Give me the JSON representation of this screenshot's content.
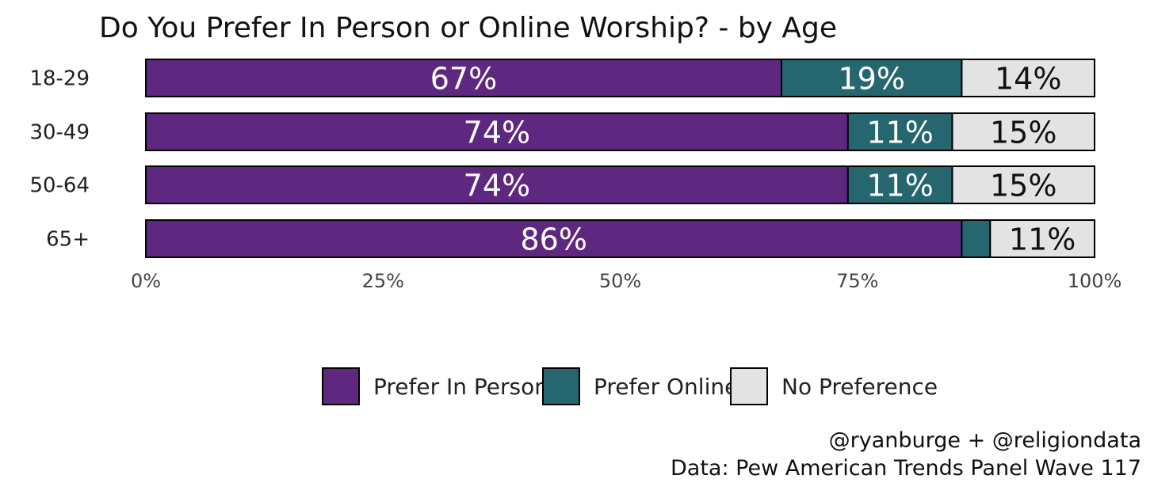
{
  "colors": {
    "in_person": "#5e2780",
    "online": "#26666e",
    "no_preference": "#e3e3e3",
    "outline": "#000000"
  },
  "chart_data": {
    "type": "bar",
    "orientation": "horizontal",
    "stacked": true,
    "title": "Do You Prefer In Person or Online Worship? - by Age",
    "categories": [
      "18-29",
      "30-49",
      "50-64",
      "65+"
    ],
    "series": [
      {
        "name": "Prefer In Person",
        "color": "#5e2780",
        "label_color": "#ffffff",
        "values": [
          67,
          74,
          74,
          86
        ],
        "labels": [
          "67%",
          "74%",
          "74%",
          "86%"
        ]
      },
      {
        "name": "Prefer Online",
        "color": "#26666e",
        "label_color": "#ffffff",
        "values": [
          19,
          11,
          11,
          3
        ],
        "labels": [
          "19%",
          "11%",
          "11%",
          ""
        ]
      },
      {
        "name": "No Preference",
        "color": "#e3e3e3",
        "label_color": "#111111",
        "values": [
          14,
          15,
          15,
          11
        ],
        "labels": [
          "14%",
          "15%",
          "15%",
          "11%"
        ]
      }
    ],
    "xlim": [
      0,
      100
    ],
    "x_ticks": [
      "0%",
      "25%",
      "50%",
      "75%",
      "100%"
    ],
    "x_tick_values": [
      0,
      25,
      50,
      75,
      100
    ],
    "legend_position": "bottom",
    "grid": false
  },
  "caption": {
    "line1": "@ryanburge + @religiondata",
    "line2": "Data: Pew American Trends Panel Wave 117"
  }
}
